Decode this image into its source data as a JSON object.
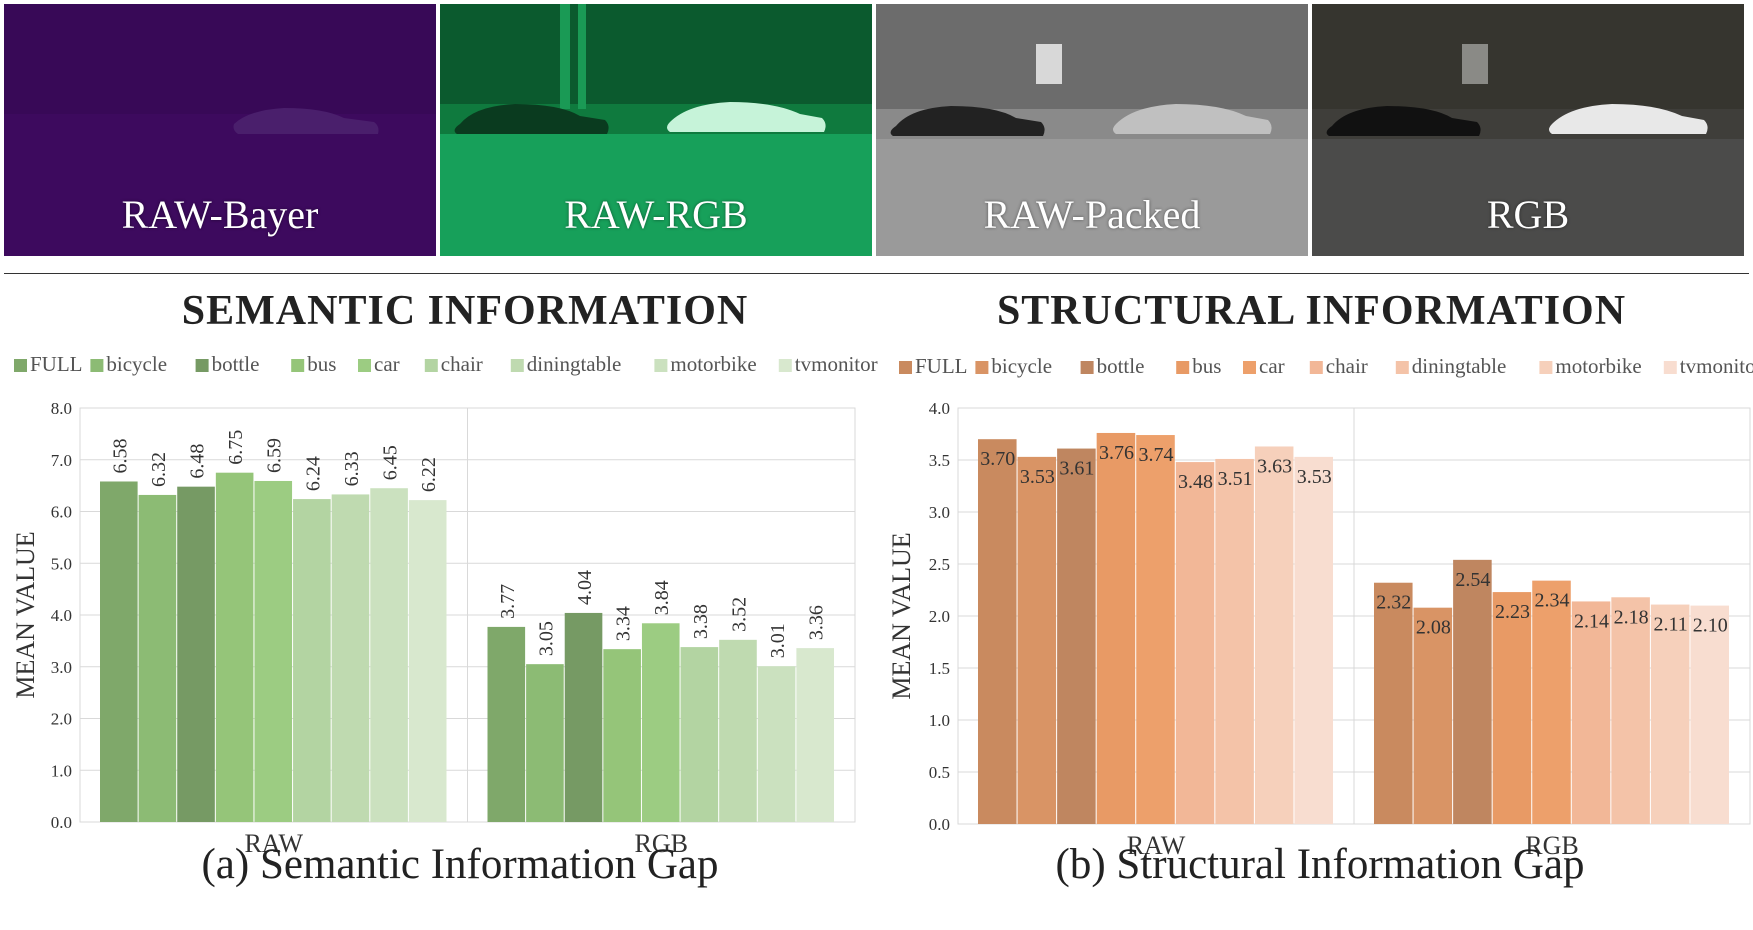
{
  "panels": [
    {
      "label": "RAW-Bayer",
      "tint": "#3d0a5e"
    },
    {
      "label": "RAW-RGB",
      "tint": "#0f7a3e"
    },
    {
      "label": "RAW-Packed",
      "tint": "#6e6e6e"
    },
    {
      "label": "RGB",
      "tint": "#3f3e3a"
    }
  ],
  "headings": {
    "semantic": "SEMANTIC INFORMATION",
    "structural": "STRUCTURAL INFORMATION"
  },
  "captions": {
    "a": "(a) Semantic Information Gap",
    "b": "(b) Structural Information Gap"
  },
  "chart_data": [
    {
      "type": "bar",
      "title": "SEMANTIC INFORMATION",
      "ylabel": "MEAN VALUE",
      "xlabel": "",
      "categories": [
        "RAW",
        "RGB"
      ],
      "ylim": [
        0,
        8
      ],
      "yticks": [
        "0.0",
        "1.0",
        "2.0",
        "3.0",
        "4.0",
        "5.0",
        "6.0",
        "7.0",
        "8.0"
      ],
      "grid": true,
      "legend_position": "top",
      "series": [
        {
          "name": "FULL",
          "values": [
            6.58,
            3.77
          ],
          "color": "#7fa86a"
        },
        {
          "name": "bicycle",
          "values": [
            6.32,
            3.05
          ],
          "color": "#8cbb74"
        },
        {
          "name": "bottle",
          "values": [
            6.48,
            4.04
          ],
          "color": "#769a64"
        },
        {
          "name": "bus",
          "values": [
            6.75,
            3.34
          ],
          "color": "#95c579"
        },
        {
          "name": "car",
          "values": [
            6.59,
            3.84
          ],
          "color": "#9ccc82"
        },
        {
          "name": "chair",
          "values": [
            6.24,
            3.38
          ],
          "color": "#b3d4a2"
        },
        {
          "name": "diningtable",
          "values": [
            6.33,
            3.52
          ],
          "color": "#bfdab0"
        },
        {
          "name": "motorbike",
          "values": [
            6.45,
            3.01
          ],
          "color": "#cbe1bf"
        },
        {
          "name": "tvmonitor",
          "values": [
            6.22,
            3.36
          ],
          "color": "#d8e8ce"
        }
      ],
      "labels": [
        [
          "6.58",
          "3.77"
        ],
        [
          "6.32",
          "3.05"
        ],
        [
          "6.48",
          "4.04"
        ],
        [
          "6.75",
          "3.34"
        ],
        [
          "6.59",
          "3.84"
        ],
        [
          "6.24",
          "3.38"
        ],
        [
          "6.33",
          "3.52"
        ],
        [
          "6.45",
          "3.01"
        ],
        [
          "6.22",
          "3.36"
        ]
      ]
    },
    {
      "type": "bar",
      "title": "STRUCTURAL INFORMATION",
      "ylabel": "MEAN VALUE",
      "xlabel": "",
      "categories": [
        "RAW",
        "RGB"
      ],
      "ylim": [
        0,
        4
      ],
      "yticks": [
        "0.0",
        "0.5",
        "1.0",
        "1.5",
        "2.0",
        "2.5",
        "3.0",
        "3.5",
        "4.0"
      ],
      "grid": true,
      "legend_position": "top",
      "series": [
        {
          "name": "FULL",
          "values": [
            3.7,
            2.32
          ],
          "color": "#c98a5f"
        },
        {
          "name": "bicycle",
          "values": [
            3.53,
            2.08
          ],
          "color": "#d99465"
        },
        {
          "name": "bottle",
          "values": [
            3.61,
            2.54
          ],
          "color": "#bf8660"
        },
        {
          "name": "bus",
          "values": [
            3.76,
            2.23
          ],
          "color": "#e89a65"
        },
        {
          "name": "car",
          "values": [
            3.74,
            2.34
          ],
          "color": "#eda06b"
        },
        {
          "name": "chair",
          "values": [
            3.48,
            2.14
          ],
          "color": "#f2b797"
        },
        {
          "name": "diningtable",
          "values": [
            3.51,
            2.18
          ],
          "color": "#f4c3a8"
        },
        {
          "name": "motorbike",
          "values": [
            3.63,
            2.11
          ],
          "color": "#f6d0bb"
        },
        {
          "name": "tvmonitor",
          "values": [
            3.53,
            2.1
          ],
          "color": "#f8ddd0"
        }
      ],
      "labels": [
        [
          "3.70",
          "2.32"
        ],
        [
          "3.53",
          "2.08"
        ],
        [
          "3.61",
          "2.54"
        ],
        [
          "3.76",
          "2.23"
        ],
        [
          "3.74",
          "2.34"
        ],
        [
          "3.48",
          "2.14"
        ],
        [
          "3.51",
          "2.18"
        ],
        [
          "3.63",
          "2.11"
        ],
        [
          "3.53",
          "2.10"
        ]
      ]
    }
  ]
}
